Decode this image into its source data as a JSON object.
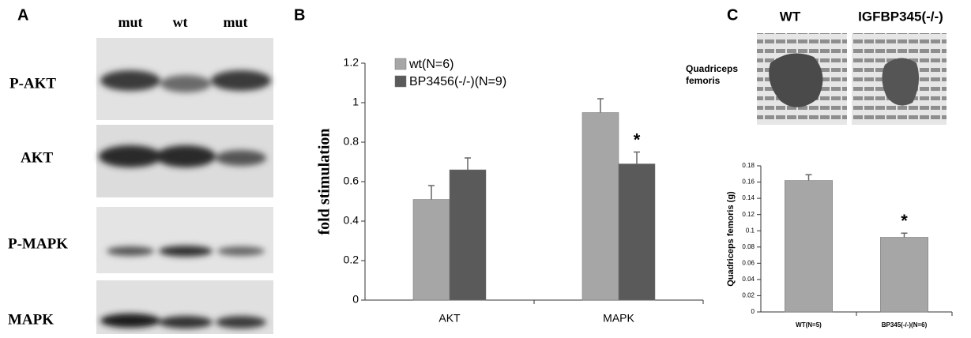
{
  "panel_labels": [
    "A",
    "B",
    "C"
  ],
  "blot": {
    "lanes": [
      "mut",
      "wt",
      "mut"
    ],
    "rows": [
      "P-AKT",
      "AKT",
      "P-MAPK",
      "MAPK"
    ]
  },
  "photos": {
    "labels": [
      "WT",
      "IGFBP345(-/-)"
    ],
    "muscle": [
      "Quadriceps",
      "femoris"
    ]
  },
  "chart_data": [
    {
      "type": "bar",
      "ylabel": "fold stimulation",
      "categories": [
        "AKT",
        "MAPK"
      ],
      "series": [
        {
          "name": "wt(N=6)",
          "color": "#a6a6a6",
          "values": [
            0.51,
            0.95
          ],
          "errors": [
            0.07,
            0.07
          ]
        },
        {
          "name": "BP3456(-/-)(N=9)",
          "color": "#5a5a5a",
          "values": [
            0.66,
            0.69
          ],
          "errors": [
            0.06,
            0.06
          ]
        }
      ],
      "annotations": [
        {
          "text": "*",
          "category": "MAPK",
          "series": "BP3456(-/-)(N=9)"
        }
      ],
      "ylim": [
        0,
        1.2
      ],
      "yticks": [
        0,
        0.2,
        0.4,
        0.6,
        0.8,
        1,
        1.2
      ],
      "legend": "upper left",
      "grid": false
    },
    {
      "type": "bar",
      "ylabel": "Quadriceps femoris (g)",
      "categories": [
        "WT(N=5)",
        "BP345(-/-)(N=6)"
      ],
      "values": [
        0.162,
        0.092
      ],
      "errors": [
        0.007,
        0.005
      ],
      "color": "#a6a6a6",
      "annotations": [
        {
          "text": "*",
          "category": "BP345(-/-)(N=6)"
        }
      ],
      "ylim": [
        0,
        0.18
      ],
      "yticks": [
        0,
        0.02,
        0.04,
        0.06,
        0.08,
        0.1,
        0.12,
        0.14,
        0.16,
        0.18
      ],
      "grid": false
    }
  ]
}
